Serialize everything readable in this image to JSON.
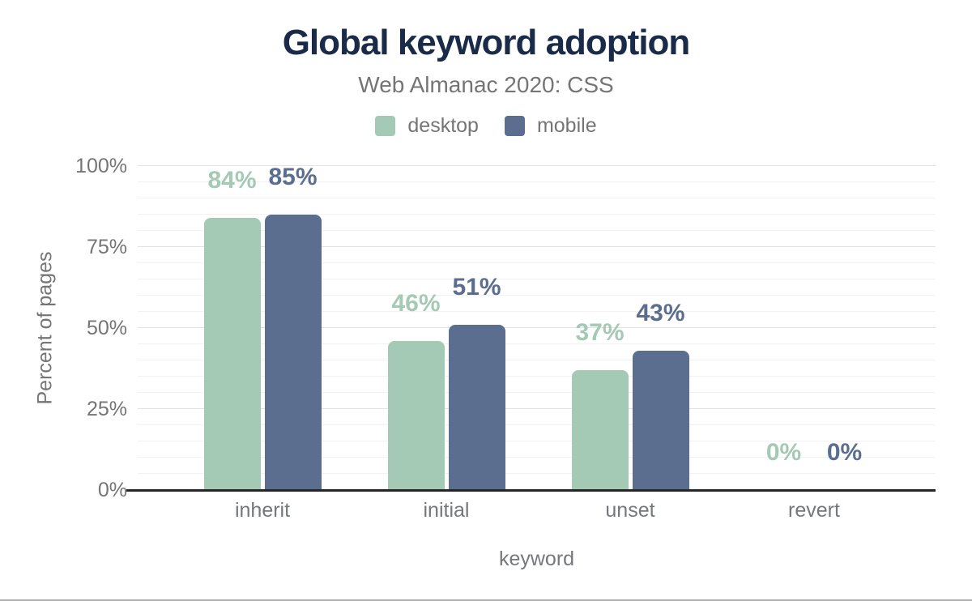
{
  "chart_data": {
    "type": "bar",
    "title": "Global keyword adoption",
    "subtitle": "Web Almanac 2020: CSS",
    "categories": [
      "inherit",
      "initial",
      "unset",
      "revert"
    ],
    "series": [
      {
        "name": "desktop",
        "color": "#a4c9b4",
        "values": [
          84,
          46,
          37,
          0
        ],
        "labels": [
          "84%",
          "46%",
          "37%",
          "0%"
        ]
      },
      {
        "name": "mobile",
        "color": "#5c6e8f",
        "values": [
          85,
          51,
          43,
          0
        ],
        "labels": [
          "85%",
          "51%",
          "43%",
          "0%"
        ]
      }
    ],
    "xlabel": "keyword",
    "ylabel": "Percent of pages",
    "ylim": [
      0,
      100
    ],
    "y_tick_percents": [
      0,
      25,
      50,
      75,
      100
    ],
    "y_tick_labels": [
      "0%",
      "25%",
      "50%",
      "75%",
      "100%"
    ],
    "minor_grid_step": 5,
    "grid": "horizontal-only",
    "legend_position": "top-center",
    "colors": {
      "title": "#1a2b49",
      "muted_text": "#757575",
      "major_gridline": "#e2e2e2",
      "minor_gridline": "#f2f2f2",
      "axis_line": "#262626",
      "bottom_edge_line": "#b0b0b0"
    }
  }
}
